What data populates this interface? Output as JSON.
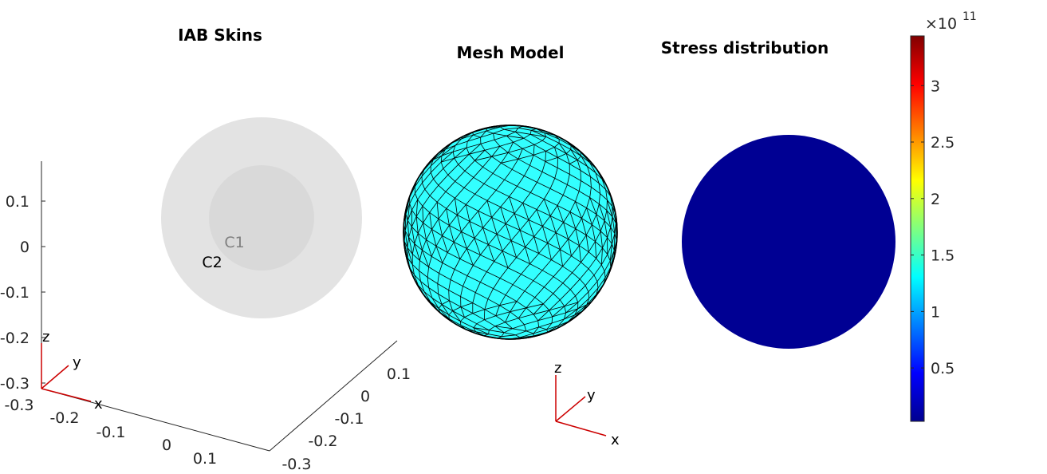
{
  "chart_data": [
    {
      "type": "3d-geometry",
      "title": "IAB Skins",
      "shapes": [
        {
          "name": "C1",
          "color": "#d9d9d9"
        },
        {
          "name": "C2",
          "color": "#e3e3e3"
        }
      ],
      "labels": {
        "c1": "C1",
        "c2": "C2"
      },
      "z_ticks": [
        "0.1",
        "0",
        "-0.1",
        "-0.2",
        "-0.3"
      ],
      "x_ticks": [
        "-0.3",
        "-0.2",
        "-0.1",
        "0",
        "0.1"
      ],
      "y_ticks": [
        "-0.3",
        "-0.2",
        "-0.1",
        "0",
        "0.1"
      ],
      "triad": {
        "x": "x",
        "y": "y",
        "z": "z"
      }
    },
    {
      "type": "mesh",
      "title": "Mesh Model",
      "face_color": "#33ffff",
      "edge_color": "#000000",
      "triad": {
        "x": "x",
        "y": "y",
        "z": "z"
      }
    },
    {
      "type": "heatmap",
      "title": "Stress distribution",
      "fill_color": "#000093",
      "colorbar": {
        "colormap": "jet",
        "exponent_label": "×10",
        "exponent": "11",
        "ticks": [
          {
            "value": 0.5,
            "label": "0.5"
          },
          {
            "value": 1,
            "label": "1"
          },
          {
            "value": 1.5,
            "label": "1.5"
          },
          {
            "value": 2,
            "label": "2"
          },
          {
            "value": 2.5,
            "label": "2.5"
          },
          {
            "value": 3,
            "label": "3"
          }
        ],
        "range": [
          0.0275,
          3.44
        ]
      }
    }
  ]
}
